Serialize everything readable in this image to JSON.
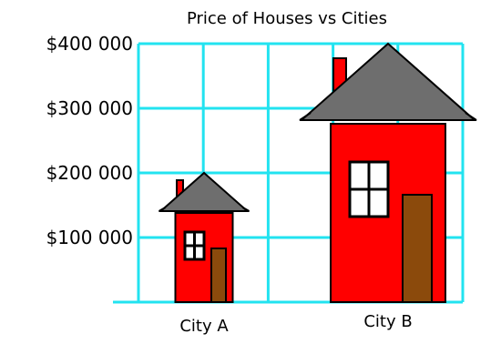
{
  "chart_data": {
    "type": "bar",
    "title": "Price of Houses vs Cities",
    "categories": [
      "City A",
      "City B"
    ],
    "values": [
      200000,
      400000
    ],
    "ylim": [
      0,
      400000
    ],
    "yticks": [
      100000,
      200000,
      300000,
      400000
    ],
    "ytick_labels": [
      "$100 000",
      "$200 000",
      "$300 000",
      "$400 000"
    ],
    "xlabel": "",
    "ylabel": "",
    "grid": true,
    "style": "pictograph-house",
    "colors": {
      "grid": "#22e3f0",
      "wall": "#ff0000",
      "roof": "#6e6e6e",
      "door": "#8b4a0c",
      "window": "#ffffff",
      "outline": "#000000"
    }
  }
}
